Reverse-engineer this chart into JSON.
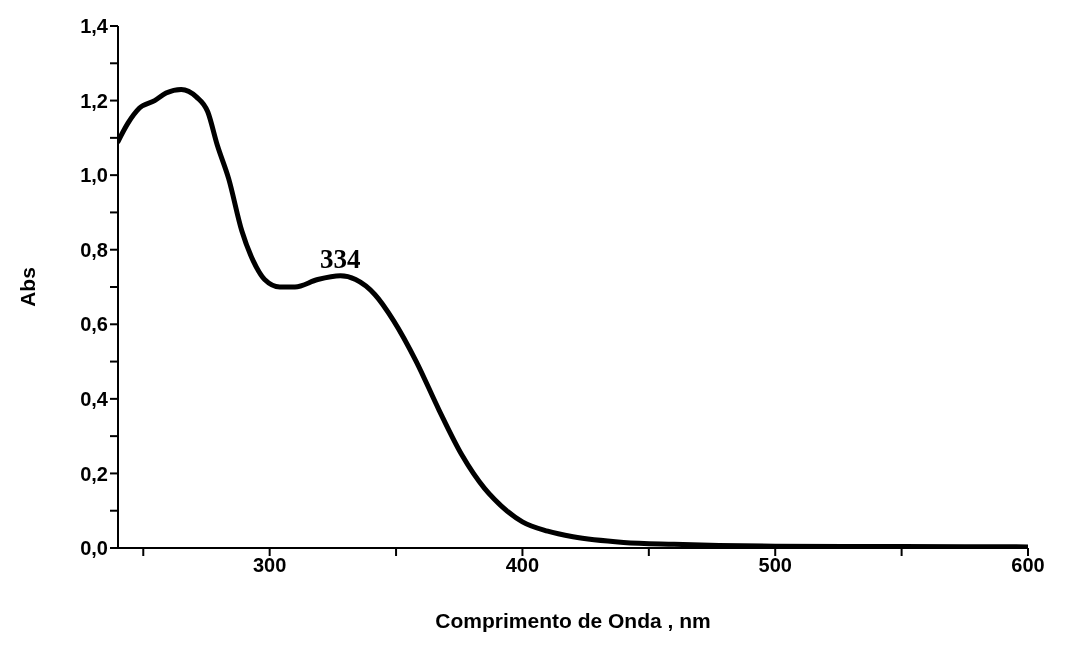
{
  "chart_data": {
    "type": "line",
    "xlabel": "Comprimento de Onda , nm",
    "ylabel": "Abs",
    "xlim": [
      240,
      600
    ],
    "xticks": [
      {
        "value": 250,
        "label": null
      },
      300,
      {
        "value": 350,
        "label": null
      },
      400,
      {
        "value": 450,
        "label": null
      },
      500,
      {
        "value": 550,
        "label": null
      },
      600
    ],
    "ylim": [
      0,
      1.4
    ],
    "yticks": [
      {
        "value": 0,
        "label": "0,0"
      },
      {
        "value": 0.1,
        "label": null
      },
      {
        "value": 0.2,
        "label": "0,2"
      },
      {
        "value": 0.3,
        "label": null
      },
      {
        "value": 0.4,
        "label": "0,4"
      },
      {
        "value": 0.5,
        "label": null
      },
      {
        "value": 0.6,
        "label": "0,6"
      },
      {
        "value": 0.7,
        "label": null
      },
      {
        "value": 0.8,
        "label": "0,8"
      },
      {
        "value": 0.9,
        "label": null
      },
      {
        "value": 1.0,
        "label": "1,0"
      },
      {
        "value": 1.1,
        "label": null
      },
      {
        "value": 1.2,
        "label": "1,2"
      },
      {
        "value": 1.3,
        "label": null
      },
      {
        "value": 1.4,
        "label": "1,4"
      }
    ],
    "grid": false,
    "marker": "none",
    "line_style": "solid",
    "annotations": [
      "334"
    ],
    "series": [
      {
        "color": "#000000",
        "x": [
          240,
          244,
          248.5,
          254.5,
          259,
          265,
          271,
          275.5,
          279.3,
          283.8,
          289,
          293.5,
          298,
          304,
          310,
          319,
          328,
          334,
          341.6,
          349,
          358,
          367,
          376,
          385,
          389,
          400,
          410,
          420,
          440,
          460,
          500,
          550,
          600
        ],
        "values": [
          1.09,
          1.14,
          1.18,
          1.2,
          1.22,
          1.23,
          1.21,
          1.17,
          1.08,
          0.99,
          0.85,
          0.77,
          0.72,
          0.7,
          0.7,
          0.72,
          0.73,
          0.72,
          0.68,
          0.61,
          0.5,
          0.37,
          0.25,
          0.16,
          0.13,
          0.07,
          0.045,
          0.03,
          0.015,
          0.01,
          0.005,
          0.004,
          0.003
        ]
      }
    ]
  }
}
